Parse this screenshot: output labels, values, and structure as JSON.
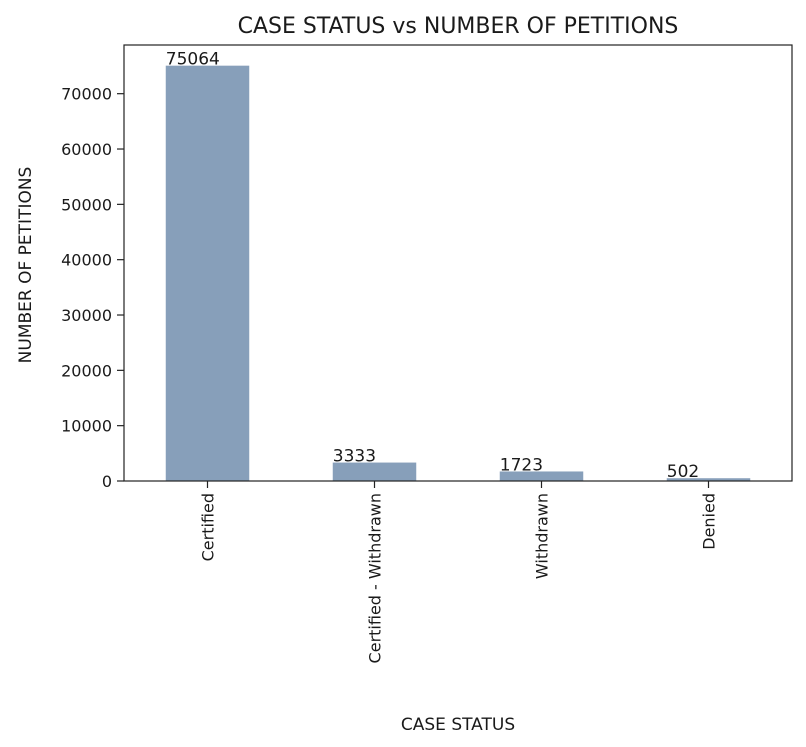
{
  "chart_data": {
    "type": "bar",
    "title": "CASE STATUS vs NUMBER OF PETITIONS",
    "xlabel": "CASE STATUS",
    "ylabel": "NUMBER OF PETITIONS",
    "categories": [
      "Certified",
      "Certified - Withdrawn",
      "Withdrawn",
      "Denied"
    ],
    "values": [
      75064,
      3333,
      1723,
      502
    ],
    "data_labels": [
      "75064",
      "3333",
      "1723",
      "502"
    ],
    "ylim": [
      0,
      78800
    ],
    "yticks": [
      0,
      10000,
      20000,
      30000,
      40000,
      50000,
      60000,
      70000
    ],
    "ytick_labels": [
      "0",
      "10000",
      "20000",
      "30000",
      "40000",
      "50000",
      "60000",
      "70000"
    ],
    "bar_color": "#879fba",
    "grid": false,
    "legend": "none"
  }
}
